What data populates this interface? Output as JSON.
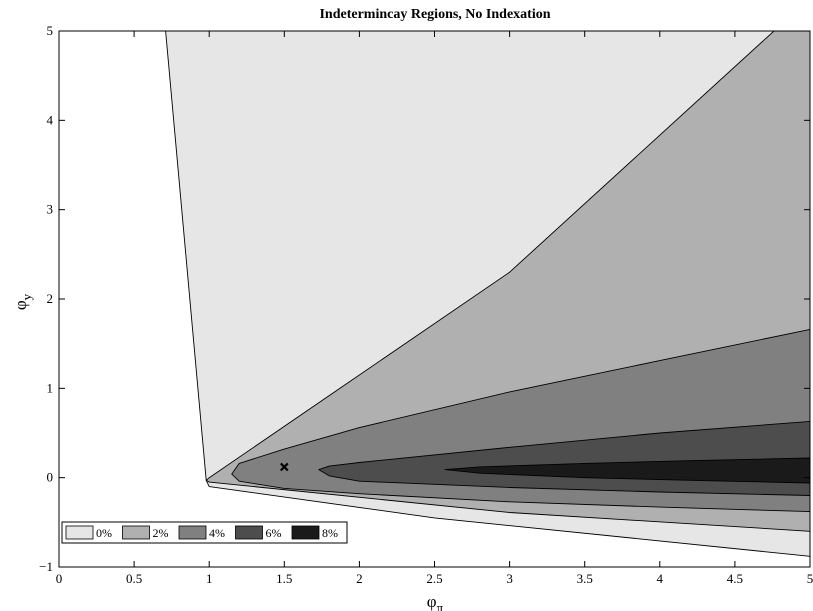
{
  "chart_data": {
    "type": "contour",
    "title": "Indetermincay Regions, No Indexation",
    "xlabel": {
      "symbol": "φ",
      "subscript": "π"
    },
    "ylabel": {
      "symbol": "φ",
      "subscript": "y"
    },
    "xlim": [
      0,
      5
    ],
    "ylim": [
      -1,
      5
    ],
    "xticks": [
      0,
      0.5,
      1,
      1.5,
      2,
      2.5,
      3,
      3.5,
      4,
      4.5,
      5
    ],
    "xtick_labels": [
      "0",
      "0.5",
      "1",
      "1.5",
      "2",
      "2.5",
      "3",
      "3.5",
      "4",
      "4.5",
      "5"
    ],
    "yticks": [
      -1,
      0,
      1,
      2,
      3,
      4,
      5
    ],
    "ytick_labels": [
      "−1",
      "0",
      "1",
      "2",
      "3",
      "4",
      "5"
    ],
    "legend_position": "bottom-left",
    "levels": [
      {
        "label": "0%",
        "color": "#e6e6e6",
        "boundary": [
          [
            0.71,
            5
          ],
          [
            0.98,
            -0.03
          ],
          [
            1.0,
            -0.1
          ],
          [
            2.5,
            -0.45
          ],
          [
            5,
            -0.88
          ],
          [
            5,
            5
          ]
        ]
      },
      {
        "label": "2%",
        "color": "#b0b0b0",
        "boundary": [
          [
            0.98,
            -0.03
          ],
          [
            1.0,
            0.0
          ],
          [
            3.0,
            2.3
          ],
          [
            4.76,
            5
          ],
          [
            5,
            5
          ],
          [
            5,
            -0.6
          ],
          [
            3.0,
            -0.39
          ],
          [
            1.0,
            -0.05
          ]
        ]
      },
      {
        "label": "4%",
        "color": "#808080",
        "boundary": [
          [
            1.15,
            0.04
          ],
          [
            1.2,
            0.16
          ],
          [
            1.5,
            0.32
          ],
          [
            2.0,
            0.56
          ],
          [
            3.0,
            0.96
          ],
          [
            4.0,
            1.31
          ],
          [
            5.0,
            1.66
          ],
          [
            5.0,
            -0.38
          ],
          [
            4.0,
            -0.33
          ],
          [
            3.0,
            -0.27
          ],
          [
            2.0,
            -0.18
          ],
          [
            1.5,
            -0.12
          ],
          [
            1.2,
            -0.04
          ]
        ]
      },
      {
        "label": "6%",
        "color": "#4d4d4d",
        "boundary": [
          [
            1.73,
            0.09
          ],
          [
            1.8,
            0.13
          ],
          [
            2.0,
            0.17
          ],
          [
            3.0,
            0.34
          ],
          [
            4.0,
            0.5
          ],
          [
            5.0,
            0.63
          ],
          [
            5.0,
            -0.2
          ],
          [
            4.0,
            -0.16
          ],
          [
            3.0,
            -0.11
          ],
          [
            2.0,
            -0.04
          ],
          [
            1.8,
            0.02
          ]
        ]
      },
      {
        "label": "8%",
        "color": "#1a1a1a",
        "boundary": [
          [
            2.57,
            0.09
          ],
          [
            2.8,
            0.12
          ],
          [
            3.5,
            0.16
          ],
          [
            4.2,
            0.19
          ],
          [
            5.0,
            0.22
          ],
          [
            5.0,
            -0.06
          ],
          [
            4.2,
            -0.03
          ],
          [
            3.5,
            0.0
          ],
          [
            2.8,
            0.05
          ]
        ]
      }
    ],
    "marker": {
      "symbol": "x",
      "x": 1.5,
      "y": 0.12
    }
  }
}
